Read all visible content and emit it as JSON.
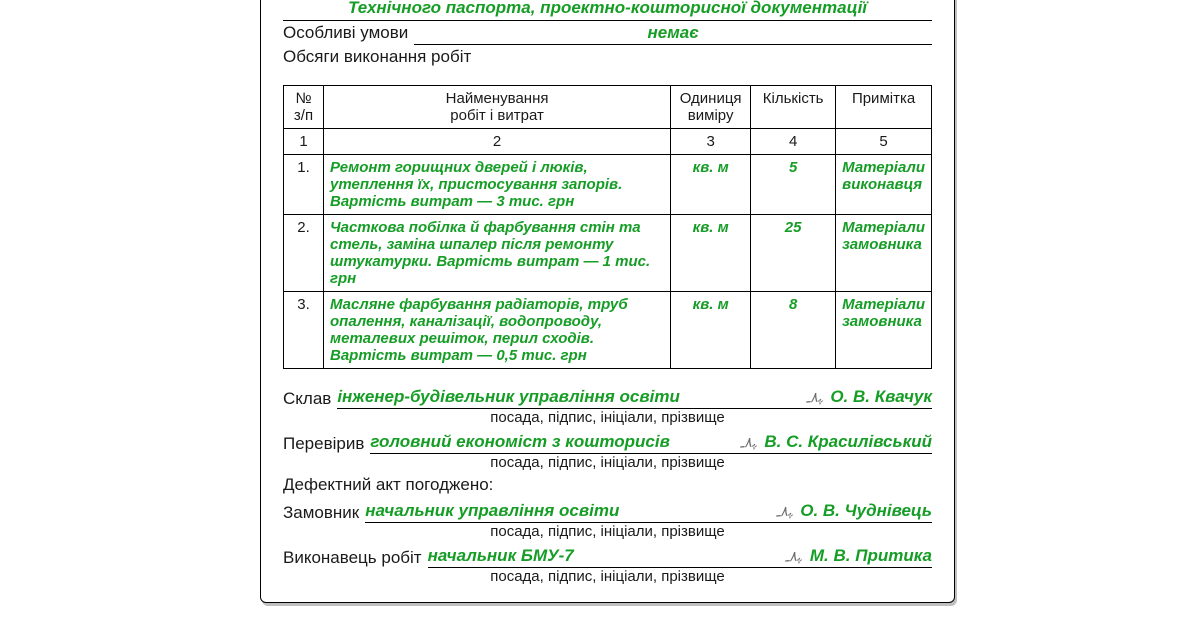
{
  "colors": {
    "green": "#169d26",
    "ink": "#1a1a1a"
  },
  "top": {
    "line1": "Технічного паспорта, проектно-кошторисної документації",
    "specials_label": "Особливі умови",
    "specials_value": "немає",
    "scope_label": "Обсяги виконання робіт"
  },
  "table": {
    "headers": {
      "num": "№\nз/п",
      "name_l1": "Найменування",
      "name_l2": "робіт і витрат",
      "unit_l1": "Одиниця",
      "unit_l2": "виміру",
      "qty": "Кількість",
      "note": "Примітка"
    },
    "numrow": [
      "1",
      "2",
      "3",
      "4",
      "5"
    ],
    "rows": [
      {
        "n": "1.",
        "name": "Ремонт горищних дверей і люків, утеплення їх, пристосування запорів. Вартість витрат — 3 тис. грн",
        "unit": "кв. м",
        "qty": "5",
        "note": "Матеріали виконавця"
      },
      {
        "n": "2.",
        "name": "Часткова побілка й фарбування стін та стель, заміна шпалер після ремонту штукатурки. Вартість витрат — 1 тис. грн",
        "unit": "кв. м",
        "qty": "25",
        "note": "Матеріали замовника"
      },
      {
        "n": "3.",
        "name": "Масляне фарбування радіаторів, труб опалення, каналізації, водопроводу, металевих решіток, перил сходів. Вартість витрат — 0,5 тис. грн",
        "unit": "кв. м",
        "qty": "8",
        "note": "Матеріали замовника"
      }
    ]
  },
  "sig": {
    "caption": "посада, підпис, ініціали, прізвище",
    "composed_label": "Склав",
    "composed_pos": "інженер-будівельник управління освіти",
    "composed_name": "О. В. Квачук",
    "checked_label": "Перевірив",
    "checked_pos": "головний економіст з кошторисів",
    "checked_name": "В. С. Красилівський",
    "agreed_label": "Дефектний акт погоджено:",
    "customer_label": "Замовник",
    "customer_pos": "начальник управління освіти",
    "customer_name": "О. В. Чуднівець",
    "contractor_label": "Виконавець робіт",
    "contractor_pos": "начальник БМУ-7",
    "contractor_name": "М. В. Притика",
    "squiggle": "ﮩ٨ـ"
  }
}
